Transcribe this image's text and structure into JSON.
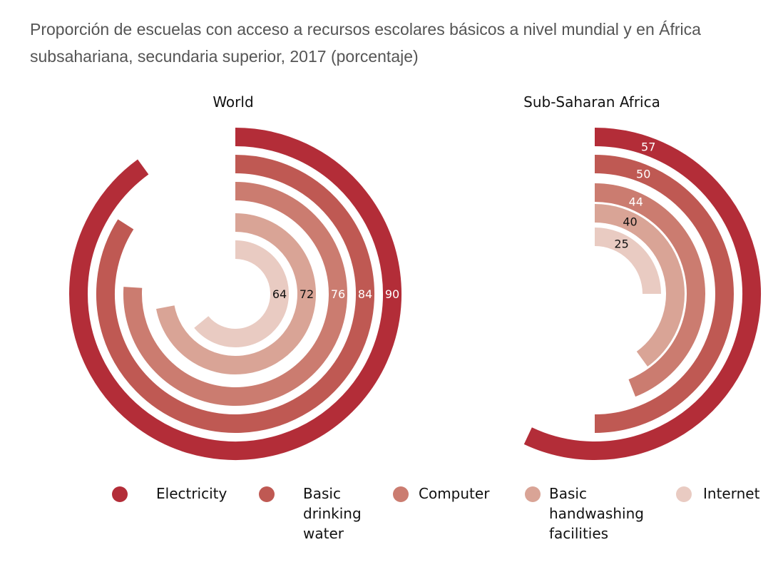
{
  "title": "Proporción de escuelas con acceso a recursos escolares básicos a nivel mundial y en África subsahariana, secundaria superior, 2017 (porcentaje)",
  "legend": [
    {
      "label": "Electricity",
      "color": "#b32d38"
    },
    {
      "label": "Basic\ndrinking\nwater",
      "color": "#bf5953"
    },
    {
      "label": "Computer",
      "color": "#cb7c70"
    },
    {
      "label": "Basic\nhandwashing\nfacilities",
      "color": "#d9a496"
    },
    {
      "label": "Internet",
      "color": "#e9cbc2"
    }
  ],
  "chart_data": [
    {
      "type": "radial-bar",
      "title": "World",
      "series": [
        {
          "name": "Electricity",
          "value": 90
        },
        {
          "name": "Basic drinking water",
          "value": 84
        },
        {
          "name": "Computer",
          "value": 76
        },
        {
          "name": "Basic handwashing facilities",
          "value": 72
        },
        {
          "name": "Internet",
          "value": 64
        }
      ],
      "max": 100
    },
    {
      "type": "radial-bar",
      "title": "Sub-Saharan Africa",
      "series": [
        {
          "name": "Electricity",
          "value": 57
        },
        {
          "name": "Basic drinking water",
          "value": 50
        },
        {
          "name": "Computer",
          "value": 44
        },
        {
          "name": "Basic handwashing facilities",
          "value": 40
        },
        {
          "name": "Internet",
          "value": 25
        }
      ],
      "max": 100
    }
  ]
}
